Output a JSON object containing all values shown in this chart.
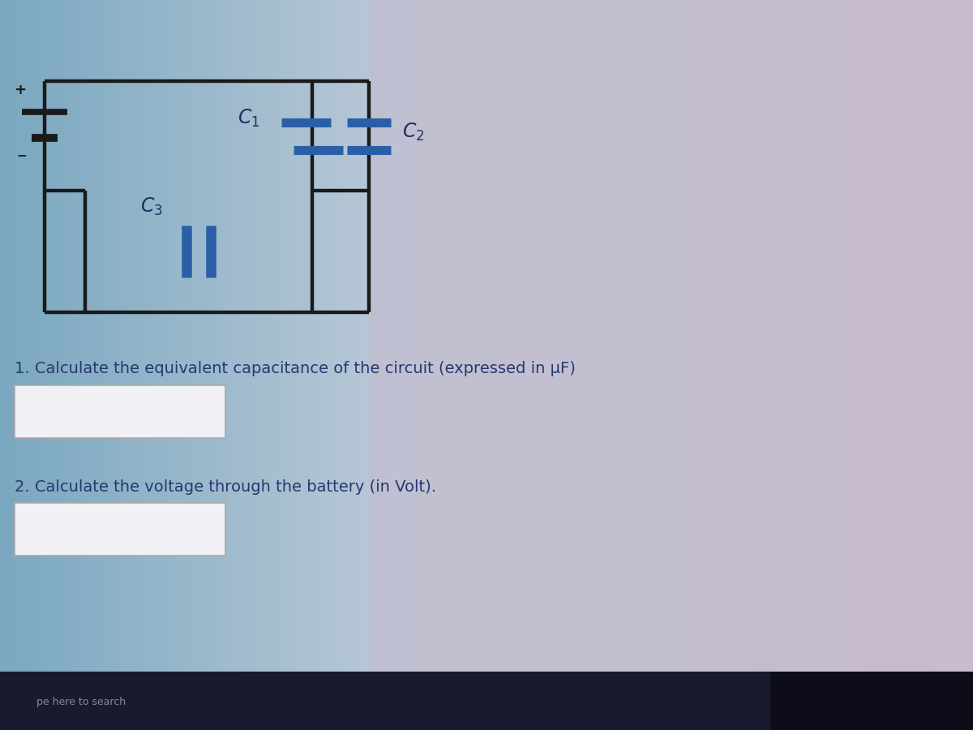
{
  "bg_left_color": "#7aa8c0",
  "bg_right_color": "#c8bece",
  "circuit_area_color": "#e8e4ee",
  "wire_color": "#1a1a1a",
  "cap_color": "#2a5fa8",
  "battery_color": "#1a1a1a",
  "text_color": "#1a3060",
  "question_color": "#283870",
  "label_1": "$C_1$",
  "label_2": "$C_2$",
  "label_3": "$C_3$",
  "question_1": "1. Calculate the equivalent capacitance of the circuit (expressed in μF)",
  "question_2": "2. Calculate the voltage through the battery (in Volt).",
  "answer_box_color": "#f0f0f5",
  "answer_box_edge": "#aaaaaa",
  "taskbar_color": "#1a1a2e",
  "taskbar_text": "pe here to search"
}
